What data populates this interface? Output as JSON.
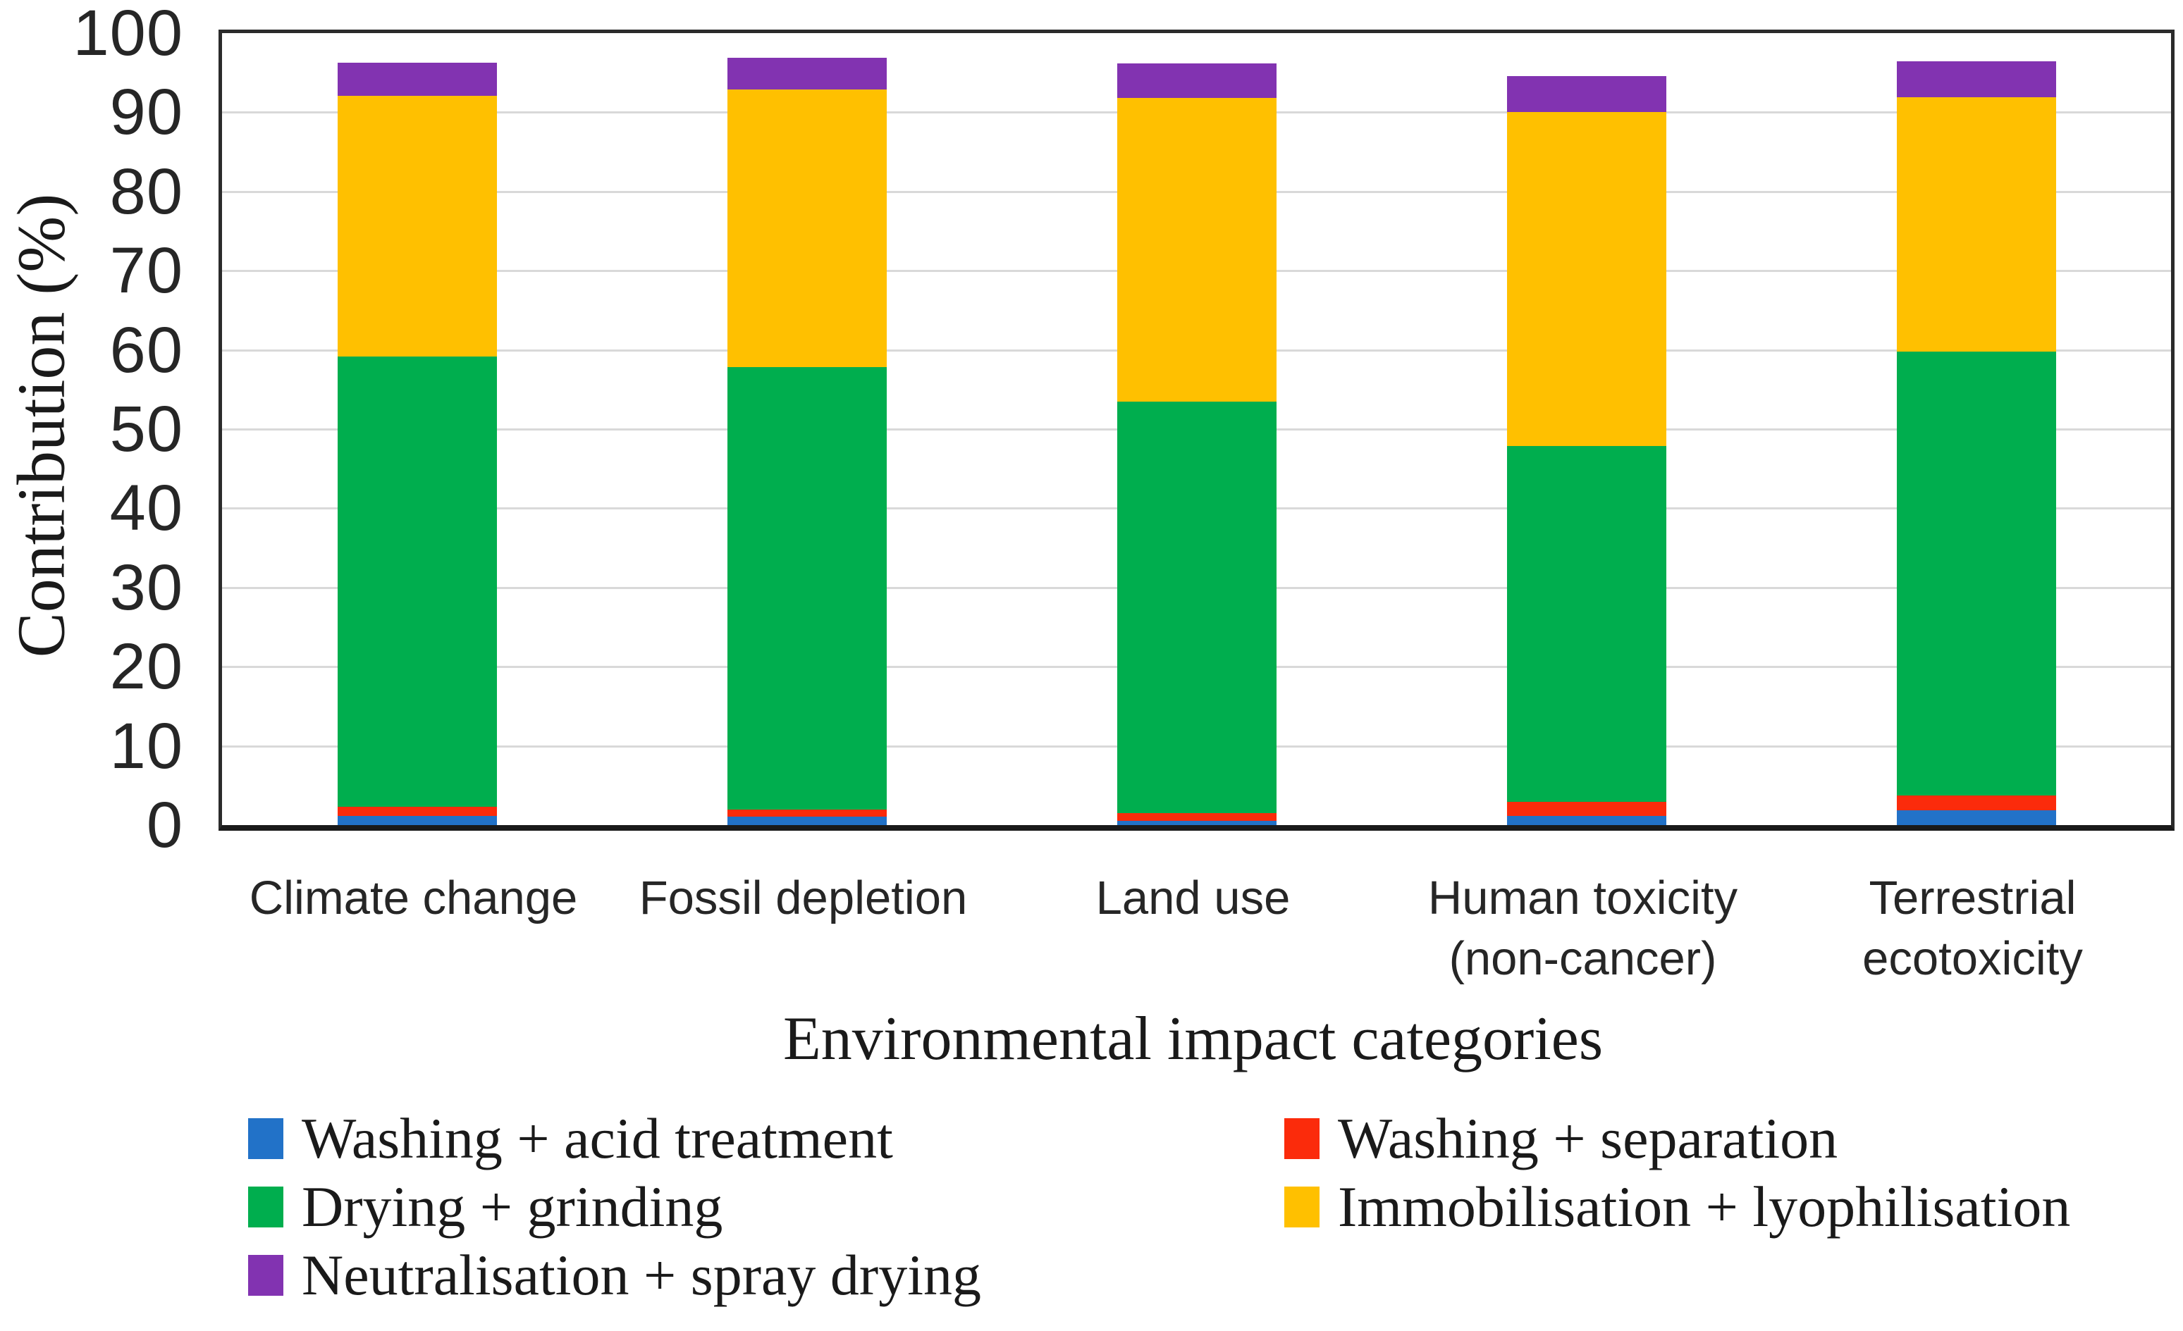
{
  "chart_data": {
    "type": "bar",
    "stacked": true,
    "title": "",
    "xlabel": "Environmental impact categories",
    "ylabel": "Contribution (%)",
    "ylim": [
      0,
      100
    ],
    "yticks": [
      0,
      10,
      20,
      30,
      40,
      50,
      60,
      70,
      80,
      90,
      100
    ],
    "grid": "horizontal",
    "legend_position": "bottom, two columns",
    "categories": [
      "Climate change",
      "Fossil depletion",
      "Land use",
      "Human toxicity\n(non-cancer)",
      "Terrestrial\necotoxicity"
    ],
    "series": [
      {
        "name": "Washing + acid treatment",
        "color": "#2272C8",
        "values": [
          1.2,
          1.1,
          0.5,
          1.2,
          1.9
        ]
      },
      {
        "name": "Washing + separation",
        "color": "#FB2B0B",
        "values": [
          1.1,
          0.9,
          1.0,
          1.7,
          1.8
        ]
      },
      {
        "name": "Drying + grinding",
        "color": "#00AE4E",
        "values": [
          56.9,
          55.8,
          52.0,
          45.0,
          56.1
        ]
      },
      {
        "name": "Immobilisation + lyophilisation",
        "color": "#FFC000",
        "values": [
          32.9,
          35.1,
          38.3,
          42.1,
          32.1
        ]
      },
      {
        "name": "Neutralisation + spray drying",
        "color": "#8233B1",
        "values": [
          4.2,
          4.0,
          4.4,
          4.6,
          4.5
        ]
      }
    ],
    "stack_totals": [
      96.2,
      96.9,
      96.2,
      94.6,
      96.4
    ],
    "legend_columns": [
      [
        0,
        2,
        4
      ],
      [
        1,
        3
      ]
    ]
  },
  "colors": {
    "background": "#FFFFFF",
    "gridline": "#D9D9D9",
    "axis_border": "#2B2B2B",
    "text": "#262626"
  }
}
